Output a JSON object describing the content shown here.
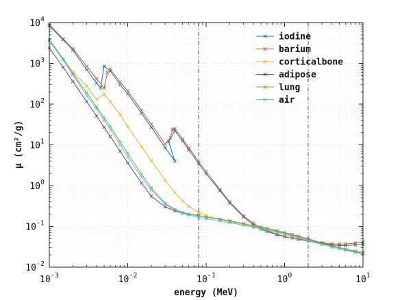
{
  "chart_data": {
    "type": "line",
    "xlabel": "energy (MeV)",
    "ylabel": "μ (cm²/g)",
    "x_scale": "log",
    "y_scale": "log",
    "xlim": [
      0.001,
      10
    ],
    "ylim": [
      0.01,
      10000
    ],
    "x_ticks": [
      {
        "value": 0.001,
        "mantissa": "10",
        "exp": "-3"
      },
      {
        "value": 0.01,
        "mantissa": "10",
        "exp": "-2"
      },
      {
        "value": 0.1,
        "mantissa": "10",
        "exp": "-1"
      },
      {
        "value": 1,
        "mantissa": "10",
        "exp": "0"
      },
      {
        "value": 10,
        "mantissa": "10",
        "exp": "1"
      }
    ],
    "y_ticks": [
      {
        "value": 0.01,
        "mantissa": "10",
        "exp": "-2"
      },
      {
        "value": 0.1,
        "mantissa": "10",
        "exp": "-1"
      },
      {
        "value": 1,
        "mantissa": "10",
        "exp": "0"
      },
      {
        "value": 10,
        "mantissa": "10",
        "exp": "1"
      },
      {
        "value": 100,
        "mantissa": "10",
        "exp": "2"
      },
      {
        "value": 1000,
        "mantissa": "10",
        "exp": "3"
      },
      {
        "value": 10000,
        "mantissa": "10",
        "exp": "4"
      }
    ],
    "grid": true,
    "legend_position": "top-right",
    "vlines": [
      0.08,
      2.0
    ],
    "series": [
      {
        "name": "iodine",
        "color": "#0072BD",
        "points": [
          [
            0.001,
            8300
          ],
          [
            0.0015,
            3800
          ],
          [
            0.002,
            2100
          ],
          [
            0.003,
            700
          ],
          [
            0.004,
            330
          ],
          [
            0.0045,
            250
          ],
          [
            0.005,
            850
          ],
          [
            0.006,
            650
          ],
          [
            0.008,
            300
          ],
          [
            0.01,
            180
          ],
          [
            0.015,
            60
          ],
          [
            0.02,
            27
          ],
          [
            0.03,
            8.5
          ],
          [
            0.04,
            4.0
          ],
          [
            0.0332,
            12
          ],
          [
            0.04,
            22
          ],
          [
            0.05,
            12.5
          ],
          [
            0.06,
            7.6
          ],
          [
            0.08,
            3.5
          ],
          [
            0.1,
            1.95
          ],
          [
            0.15,
            0.75
          ],
          [
            0.2,
            0.37
          ],
          [
            0.3,
            0.17
          ],
          [
            0.4,
            0.11
          ],
          [
            0.5,
            0.085
          ],
          [
            0.6,
            0.075
          ],
          [
            0.8,
            0.062
          ],
          [
            1,
            0.056
          ],
          [
            1.25,
            0.052
          ],
          [
            1.5,
            0.048
          ],
          [
            2,
            0.044
          ],
          [
            3,
            0.038
          ],
          [
            4,
            0.035
          ],
          [
            5,
            0.034
          ],
          [
            6,
            0.034
          ],
          [
            8,
            0.035
          ],
          [
            10,
            0.036
          ]
        ]
      },
      {
        "name": "barium",
        "color": "#D95319",
        "points": [
          [
            0.001,
            8900
          ],
          [
            0.0015,
            4000
          ],
          [
            0.002,
            2300
          ],
          [
            0.003,
            850
          ],
          [
            0.004,
            420
          ],
          [
            0.005,
            250
          ],
          [
            0.0055,
            600
          ],
          [
            0.006,
            720
          ],
          [
            0.008,
            350
          ],
          [
            0.01,
            210
          ],
          [
            0.015,
            70
          ],
          [
            0.02,
            32
          ],
          [
            0.03,
            10.5
          ],
          [
            0.035,
            15
          ],
          [
            0.0374,
            24
          ],
          [
            0.04,
            25
          ],
          [
            0.05,
            14
          ],
          [
            0.06,
            8.5
          ],
          [
            0.08,
            3.9
          ],
          [
            0.1,
            2.2
          ],
          [
            0.15,
            0.8
          ],
          [
            0.2,
            0.4
          ],
          [
            0.3,
            0.18
          ],
          [
            0.4,
            0.12
          ],
          [
            0.5,
            0.09
          ],
          [
            0.6,
            0.078
          ],
          [
            0.8,
            0.064
          ],
          [
            1,
            0.057
          ],
          [
            1.25,
            0.052
          ],
          [
            1.5,
            0.049
          ],
          [
            2,
            0.045
          ],
          [
            3,
            0.04
          ],
          [
            4,
            0.037
          ],
          [
            5,
            0.037
          ],
          [
            6,
            0.037
          ],
          [
            8,
            0.039
          ],
          [
            10,
            0.041
          ]
        ]
      },
      {
        "name": "corticalbone",
        "color": "#EDB120",
        "points": [
          [
            0.001,
            3800
          ],
          [
            0.0015,
            1300
          ],
          [
            0.002,
            610
          ],
          [
            0.003,
            280
          ],
          [
            0.004,
            130
          ],
          [
            0.005,
            175
          ],
          [
            0.006,
            115
          ],
          [
            0.008,
            55
          ],
          [
            0.01,
            28
          ],
          [
            0.015,
            9.0
          ],
          [
            0.02,
            4.1
          ],
          [
            0.03,
            1.35
          ],
          [
            0.04,
            0.67
          ],
          [
            0.05,
            0.42
          ],
          [
            0.06,
            0.31
          ],
          [
            0.08,
            0.22
          ],
          [
            0.1,
            0.185
          ],
          [
            0.15,
            0.148
          ],
          [
            0.2,
            0.131
          ],
          [
            0.3,
            0.112
          ],
          [
            0.4,
            0.1
          ],
          [
            0.5,
            0.091
          ],
          [
            0.6,
            0.084
          ],
          [
            0.8,
            0.074
          ],
          [
            1,
            0.066
          ],
          [
            1.25,
            0.059
          ],
          [
            1.5,
            0.053
          ],
          [
            2,
            0.046
          ],
          [
            3,
            0.038
          ],
          [
            4,
            0.033
          ],
          [
            5,
            0.03
          ],
          [
            6,
            0.028
          ],
          [
            8,
            0.025
          ],
          [
            10,
            0.024
          ]
        ]
      },
      {
        "name": "adipose",
        "color": "#7E2F8E",
        "points": [
          [
            0.001,
            2400
          ],
          [
            0.0015,
            800
          ],
          [
            0.002,
            360
          ],
          [
            0.003,
            115
          ],
          [
            0.004,
            51
          ],
          [
            0.005,
            27
          ],
          [
            0.006,
            16
          ],
          [
            0.008,
            7.0
          ],
          [
            0.01,
            3.6
          ],
          [
            0.015,
            1.15
          ],
          [
            0.02,
            0.55
          ],
          [
            0.03,
            0.3
          ],
          [
            0.04,
            0.24
          ],
          [
            0.05,
            0.21
          ],
          [
            0.06,
            0.2
          ],
          [
            0.08,
            0.185
          ],
          [
            0.1,
            0.168
          ],
          [
            0.15,
            0.15
          ],
          [
            0.2,
            0.136
          ],
          [
            0.3,
            0.117
          ],
          [
            0.4,
            0.105
          ],
          [
            0.5,
            0.096
          ],
          [
            0.6,
            0.089
          ],
          [
            0.8,
            0.078
          ],
          [
            1,
            0.07
          ],
          [
            1.25,
            0.063
          ],
          [
            1.5,
            0.057
          ],
          [
            2,
            0.049
          ],
          [
            3,
            0.039
          ],
          [
            4,
            0.034
          ],
          [
            5,
            0.03
          ],
          [
            6,
            0.027
          ],
          [
            8,
            0.024
          ],
          [
            10,
            0.022
          ]
        ]
      },
      {
        "name": "lung",
        "color": "#77AC30",
        "points": [
          [
            0.001,
            3800
          ],
          [
            0.0015,
            1300
          ],
          [
            0.002,
            560
          ],
          [
            0.003,
            190
          ],
          [
            0.004,
            86
          ],
          [
            0.005,
            46
          ],
          [
            0.006,
            28
          ],
          [
            0.008,
            12
          ],
          [
            0.01,
            6.2
          ],
          [
            0.015,
            1.9
          ],
          [
            0.02,
            0.88
          ],
          [
            0.03,
            0.37
          ],
          [
            0.04,
            0.26
          ],
          [
            0.05,
            0.22
          ],
          [
            0.06,
            0.2
          ],
          [
            0.08,
            0.181
          ],
          [
            0.1,
            0.169
          ],
          [
            0.15,
            0.149
          ],
          [
            0.2,
            0.136
          ],
          [
            0.3,
            0.117
          ],
          [
            0.4,
            0.105
          ],
          [
            0.5,
            0.095
          ],
          [
            0.6,
            0.088
          ],
          [
            0.8,
            0.077
          ],
          [
            1,
            0.069
          ],
          [
            1.25,
            0.062
          ],
          [
            1.5,
            0.056
          ],
          [
            2,
            0.048
          ],
          [
            3,
            0.038
          ],
          [
            4,
            0.033
          ],
          [
            5,
            0.03
          ],
          [
            6,
            0.027
          ],
          [
            8,
            0.024
          ],
          [
            10,
            0.022
          ]
        ]
      },
      {
        "name": "air",
        "color": "#4DBEEE",
        "points": [
          [
            0.001,
            3600
          ],
          [
            0.0015,
            1200
          ],
          [
            0.002,
            530
          ],
          [
            0.003,
            160
          ],
          [
            0.004,
            78
          ],
          [
            0.005,
            40
          ],
          [
            0.006,
            24
          ],
          [
            0.008,
            10
          ],
          [
            0.01,
            5.1
          ],
          [
            0.015,
            1.6
          ],
          [
            0.02,
            0.78
          ],
          [
            0.03,
            0.35
          ],
          [
            0.04,
            0.25
          ],
          [
            0.05,
            0.21
          ],
          [
            0.06,
            0.19
          ],
          [
            0.08,
            0.167
          ],
          [
            0.1,
            0.154
          ],
          [
            0.15,
            0.136
          ],
          [
            0.2,
            0.123
          ],
          [
            0.3,
            0.107
          ],
          [
            0.4,
            0.095
          ],
          [
            0.5,
            0.087
          ],
          [
            0.6,
            0.08
          ],
          [
            0.8,
            0.071
          ],
          [
            1,
            0.064
          ],
          [
            1.25,
            0.057
          ],
          [
            1.5,
            0.052
          ],
          [
            2,
            0.044
          ],
          [
            3,
            0.036
          ],
          [
            4,
            0.031
          ],
          [
            5,
            0.028
          ],
          [
            6,
            0.026
          ],
          [
            8,
            0.023
          ],
          [
            10,
            0.021
          ]
        ]
      }
    ]
  }
}
